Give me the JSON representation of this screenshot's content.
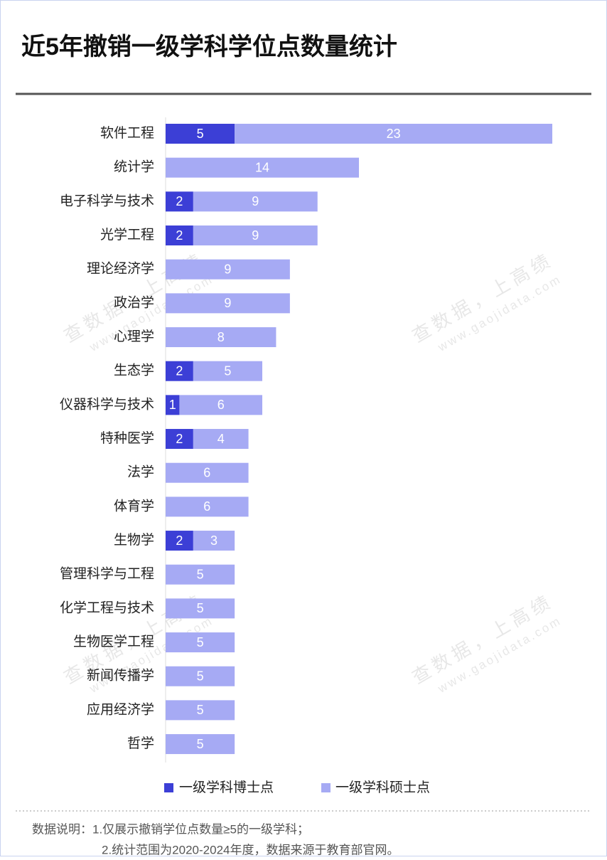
{
  "chart_data": {
    "type": "stacked-barh",
    "title": "近5年撤销一级学科学位点数量统计",
    "categories": [
      "软件工程",
      "统计学",
      "电子科学与技术",
      "光学工程",
      "理论经济学",
      "政治学",
      "心理学",
      "生态学",
      "仪器科学与技术",
      "特种医学",
      "法学",
      "体育学",
      "生物学",
      "管理科学与工程",
      "化学工程与技术",
      "生物医学工程",
      "新闻传播学",
      "应用经济学",
      "哲学"
    ],
    "series": [
      {
        "name": "一级学科博士点",
        "color": "#3c3fd6",
        "values": [
          5,
          null,
          2,
          2,
          null,
          null,
          null,
          2,
          1,
          2,
          null,
          null,
          2,
          null,
          null,
          null,
          null,
          null,
          null
        ]
      },
      {
        "name": "一级学科硕士点",
        "color": "#a6aaf4",
        "values": [
          23,
          14,
          9,
          9,
          9,
          9,
          8,
          5,
          6,
          4,
          6,
          6,
          3,
          5,
          5,
          5,
          5,
          5,
          5
        ]
      }
    ],
    "watermark": "查数据，上高绩",
    "watermark_url": "www.gaojidata.com",
    "notes": [
      "数据说明：1.仅展示撤销学位点数量≥5的一级学科；",
      "2.统计范围为2020-2024年度，数据来源于教育部官网。"
    ]
  }
}
